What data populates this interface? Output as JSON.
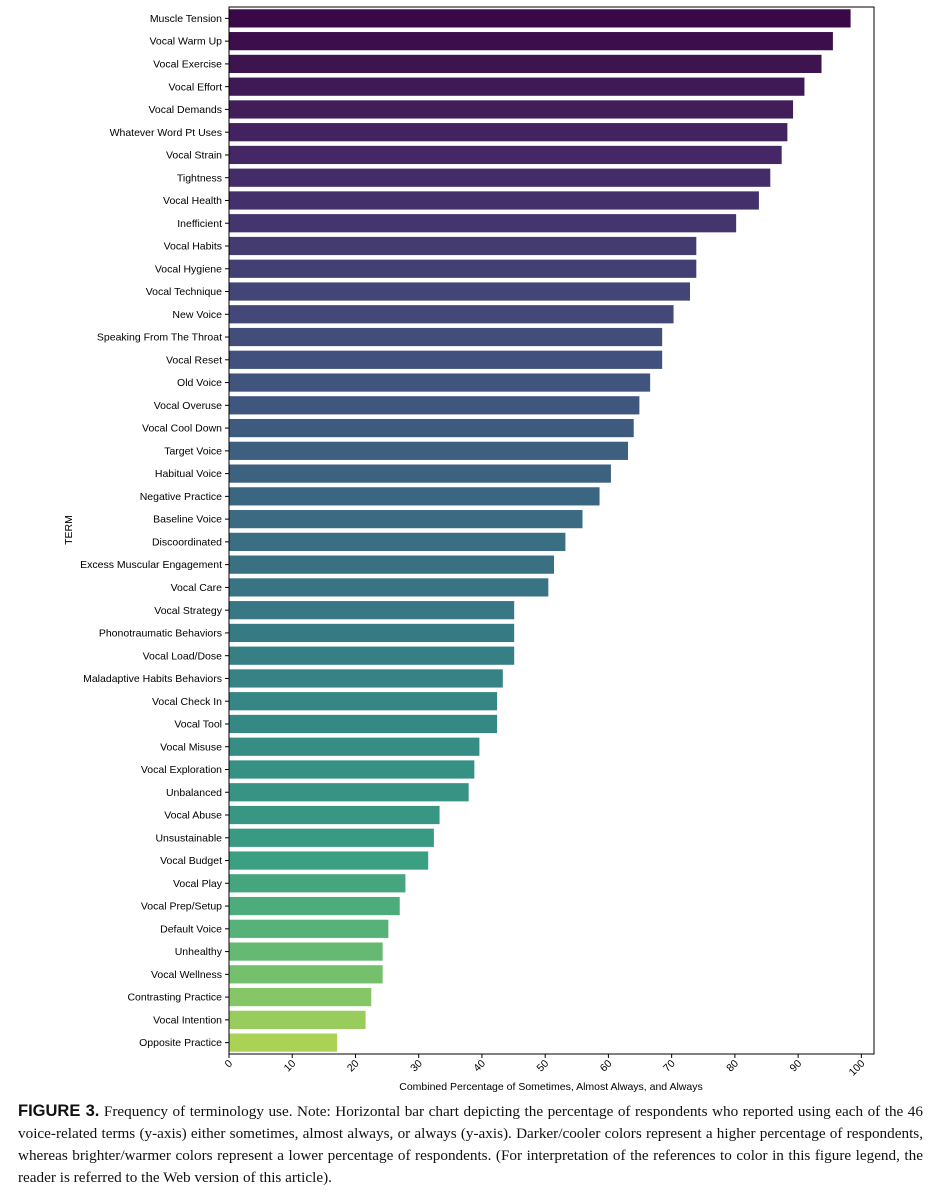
{
  "chart_data": {
    "type": "bar",
    "orientation": "horizontal",
    "ylabel": "TERM",
    "xlabel": "Combined Percentage of Sometimes, Almost Always, and Always",
    "xlim": [
      0,
      102
    ],
    "xticks": [
      "0",
      "10",
      "20",
      "30",
      "40",
      "50",
      "60",
      "70",
      "80",
      "90",
      "100"
    ],
    "grid": false,
    "colormap": "viridis (dark = highest, bright = lowest)",
    "categories": [
      "Muscle Tension",
      "Vocal Warm Up",
      "Vocal Exercise",
      "Vocal Effort",
      "Vocal Demands",
      "Whatever Word Pt Uses",
      "Vocal Strain",
      "Tightness",
      "Vocal Health",
      "Inefficient",
      "Vocal Habits",
      "Vocal Hygiene",
      "Vocal Technique",
      "New Voice",
      "Speaking From The Throat",
      "Vocal Reset",
      "Old Voice",
      "Vocal Overuse",
      "Vocal Cool Down",
      "Target Voice",
      "Habitual Voice",
      "Negative Practice",
      "Baseline Voice",
      "Discoordinated",
      "Excess Muscular Engagement",
      "Vocal Care",
      "Vocal Strategy",
      "Phonotraumatic Behaviors",
      "Vocal Load/Dose",
      "Maladaptive Habits Behaviors",
      "Vocal Check In",
      "Vocal Tool",
      "Vocal Misuse",
      "Vocal Exploration",
      "Unbalanced",
      "Vocal Abuse",
      "Unsustainable",
      "Vocal Budget",
      "Vocal Play",
      "Vocal Prep/Setup",
      "Default Voice",
      "Unhealthy",
      "Vocal Wellness",
      "Contrasting Practice",
      "Vocal Intention",
      "Opposite Practice"
    ],
    "values": [
      98.3,
      95.5,
      93.7,
      91.0,
      89.2,
      88.3,
      87.4,
      85.6,
      83.8,
      80.2,
      73.9,
      73.9,
      72.9,
      70.3,
      68.5,
      68.5,
      66.6,
      64.9,
      64.0,
      63.1,
      60.4,
      58.6,
      55.9,
      53.2,
      51.4,
      50.5,
      45.1,
      45.1,
      45.1,
      43.3,
      42.4,
      42.4,
      39.6,
      38.8,
      37.9,
      33.3,
      32.4,
      31.5,
      27.9,
      27.0,
      25.2,
      24.3,
      24.3,
      22.5,
      21.6,
      17.1
    ]
  },
  "caption": {
    "label": "FIGURE 3.",
    "text": "Frequency of terminology use. Note: Horizontal bar chart depicting the percentage of respondents who reported using each of the 46 voice-related terms (y-axis) either sometimes, almost always, or always (y-axis). Darker/cooler colors represent a higher percentage of respondents, whereas brighter/warmer colors represent a lower percentage of respondents. (For interpretation of the references to color in this figure legend, the reader is referred to the Web version of this article)."
  }
}
